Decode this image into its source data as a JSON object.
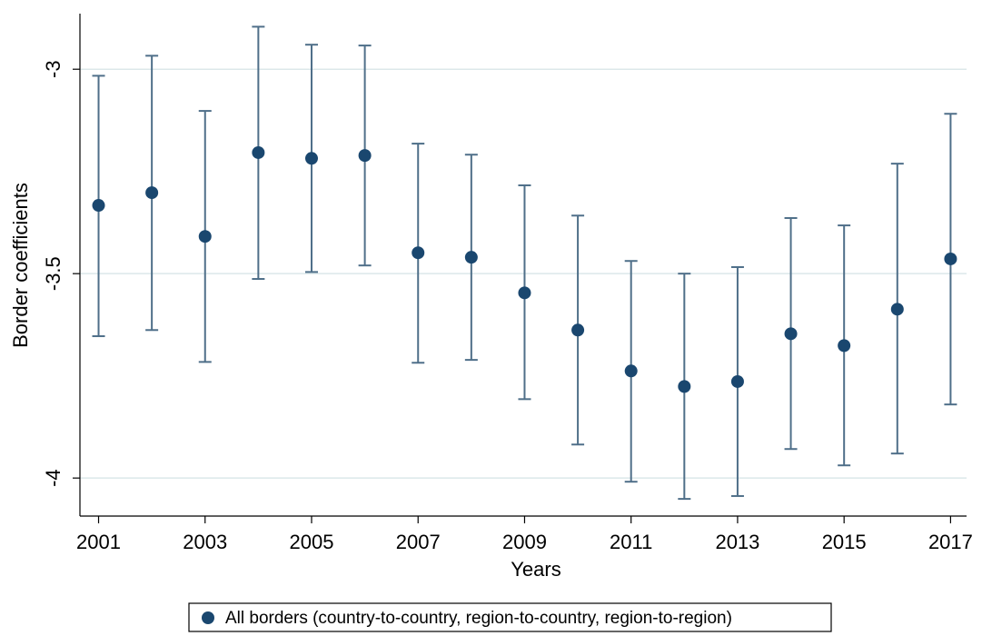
{
  "chart_data": {
    "type": "errorbar",
    "x_label": "Years",
    "y_label": "Border coefficients",
    "x": [
      2001,
      2002,
      2003,
      2004,
      2005,
      2006,
      2007,
      2008,
      2009,
      2010,
      2011,
      2012,
      2013,
      2014,
      2015,
      2016,
      2017
    ],
    "series": [
      {
        "name": "All borders (country-to-country, region-to-country, region-to-region)",
        "color": "#1a476f",
        "bar_color": "#4f6f89",
        "values": [
          -3.333,
          -3.302,
          -3.409,
          -3.204,
          -3.218,
          -3.211,
          -3.449,
          -3.46,
          -3.547,
          -3.638,
          -3.738,
          -3.776,
          -3.764,
          -3.647,
          -3.676,
          -3.587,
          -3.464
        ],
        "ci_low": [
          -3.653,
          -3.638,
          -3.716,
          -3.513,
          -3.496,
          -3.48,
          -3.718,
          -3.711,
          -3.807,
          -3.918,
          -4.009,
          -4.051,
          -4.044,
          -3.929,
          -3.969,
          -3.94,
          -3.82
        ],
        "ci_high": [
          -3.016,
          -2.967,
          -3.102,
          -2.896,
          -2.94,
          -2.942,
          -3.182,
          -3.209,
          -3.284,
          -3.358,
          -3.469,
          -3.5,
          -3.484,
          -3.364,
          -3.382,
          -3.231,
          -3.109
        ]
      }
    ],
    "xlim": [
      2000.65,
      2017.3
    ],
    "xticks": [
      2001,
      2003,
      2005,
      2007,
      2009,
      2011,
      2013,
      2015,
      2017
    ],
    "ylim": [
      -4.093,
      -2.864
    ],
    "yticks": [
      -4,
      -3.5,
      -3
    ],
    "grid": true,
    "grid_color": "#dce8ea",
    "legend": "bottom"
  }
}
